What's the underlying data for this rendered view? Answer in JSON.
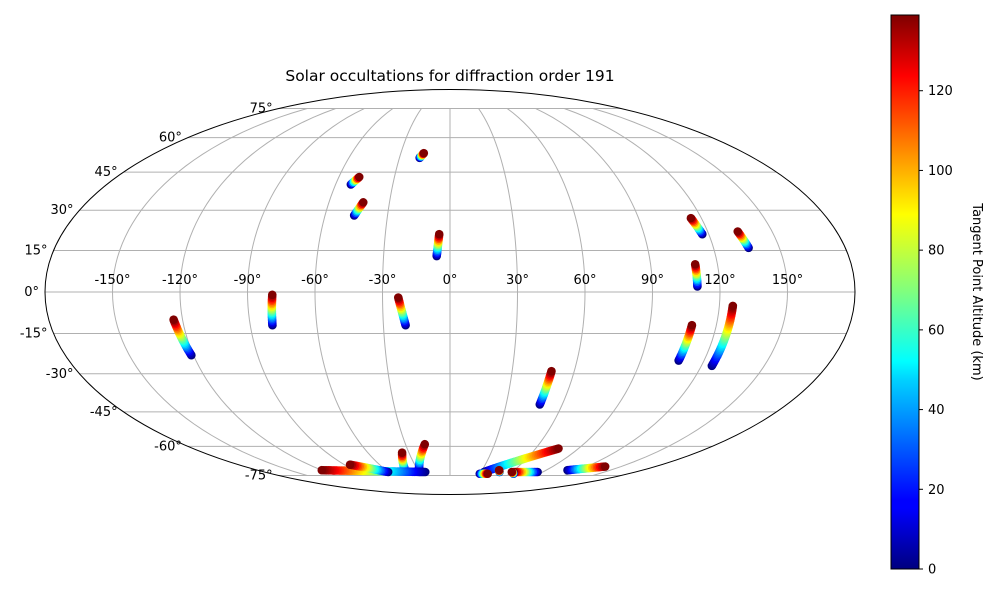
{
  "chart_data": {
    "type": "scatter",
    "projection": "mollweide",
    "title": "Solar occultations for diffraction order 191",
    "lon_ticks": [
      -150,
      -120,
      -90,
      -60,
      -30,
      0,
      30,
      60,
      90,
      120,
      150
    ],
    "lat_ticks": [
      -75,
      -60,
      -45,
      -30,
      -15,
      0,
      15,
      30,
      45,
      60,
      75
    ],
    "lon_tick_labels": [
      "-150°",
      "-120°",
      "-90°",
      "-60°",
      "-30°",
      "0°",
      "30°",
      "60°",
      "90°",
      "120°",
      "150°"
    ],
    "lat_tick_labels": [
      "-75°",
      "-60°",
      "-45°",
      "-30°",
      "-15°",
      "0°",
      "15°",
      "30°",
      "45°",
      "60°",
      "75°"
    ],
    "grid": true,
    "colorbar": {
      "label": "Tangent Point Altitude (km)",
      "min": 0,
      "max": 139,
      "ticks": [
        0,
        20,
        40,
        60,
        80,
        100,
        120
      ],
      "tick_labels": [
        "0",
        "20",
        "40",
        "60",
        "80",
        "100",
        "120"
      ],
      "colormap": "jet",
      "placement": "right"
    },
    "tracks": [
      {
        "lon_start": -52,
        "lat_start": 40,
        "lon_end": -49,
        "lat_end": 43
      },
      {
        "lon_start": -18,
        "lat_start": 51,
        "lon_end": -16,
        "lat_end": 53
      },
      {
        "lon_start": -46,
        "lat_start": 28,
        "lon_end": -43,
        "lat_end": 33
      },
      {
        "lon_start": -6,
        "lat_start": 13,
        "lon_end": -5,
        "lat_end": 21
      },
      {
        "lon_start": 117,
        "lat_start": 21,
        "lon_end": 115,
        "lat_end": 27
      },
      {
        "lon_start": 136,
        "lat_start": 16,
        "lon_end": 134,
        "lat_end": 22
      },
      {
        "lon_start": 110,
        "lat_start": 2,
        "lon_end": 110,
        "lat_end": 10
      },
      {
        "lon_start": -80,
        "lat_start": -12,
        "lon_end": -79,
        "lat_end": -1
      },
      {
        "lon_start": -20,
        "lat_start": -12,
        "lon_end": -23,
        "lat_end": -2
      },
      {
        "lon_start": -121,
        "lat_start": -23,
        "lon_end": -124,
        "lat_end": -10
      },
      {
        "lon_start": 108,
        "lat_start": -25,
        "lon_end": 109,
        "lat_end": -12
      },
      {
        "lon_start": 125,
        "lat_start": -27,
        "lon_end": 126,
        "lat_end": -5
      },
      {
        "lon_start": 48,
        "lat_start": -42,
        "lon_end": 49,
        "lat_end": -29
      },
      {
        "lon_start": 33,
        "lat_start": -73,
        "lon_end": 76,
        "lat_end": -61
      },
      {
        "lon_start": -42,
        "lat_start": -72,
        "lon_end": -35,
        "lat_end": -63
      },
      {
        "lon_start": -28,
        "lat_start": -71,
        "lon_end": -17,
        "lat_end": -59
      },
      {
        "lon_start": -24,
        "lat_start": -73,
        "lon_end": -120,
        "lat_end": -72
      },
      {
        "lon_start": -60,
        "lat_start": -73,
        "lon_end": -85,
        "lat_end": -69
      },
      {
        "lon_start": 85,
        "lat_start": -73,
        "lon_end": 62,
        "lat_end": -73
      },
      {
        "lon_start": 30,
        "lat_start": -74,
        "lon_end": 38,
        "lat_end": -74
      },
      {
        "lon_start": 64,
        "lat_start": -74,
        "lon_end": 60,
        "lat_end": -73
      },
      {
        "lon_start": 110,
        "lat_start": -72,
        "lon_end": 136,
        "lat_end": -70
      },
      {
        "lon_start": 48,
        "lat_start": -73,
        "lon_end": 46,
        "lat_end": -72
      }
    ]
  }
}
